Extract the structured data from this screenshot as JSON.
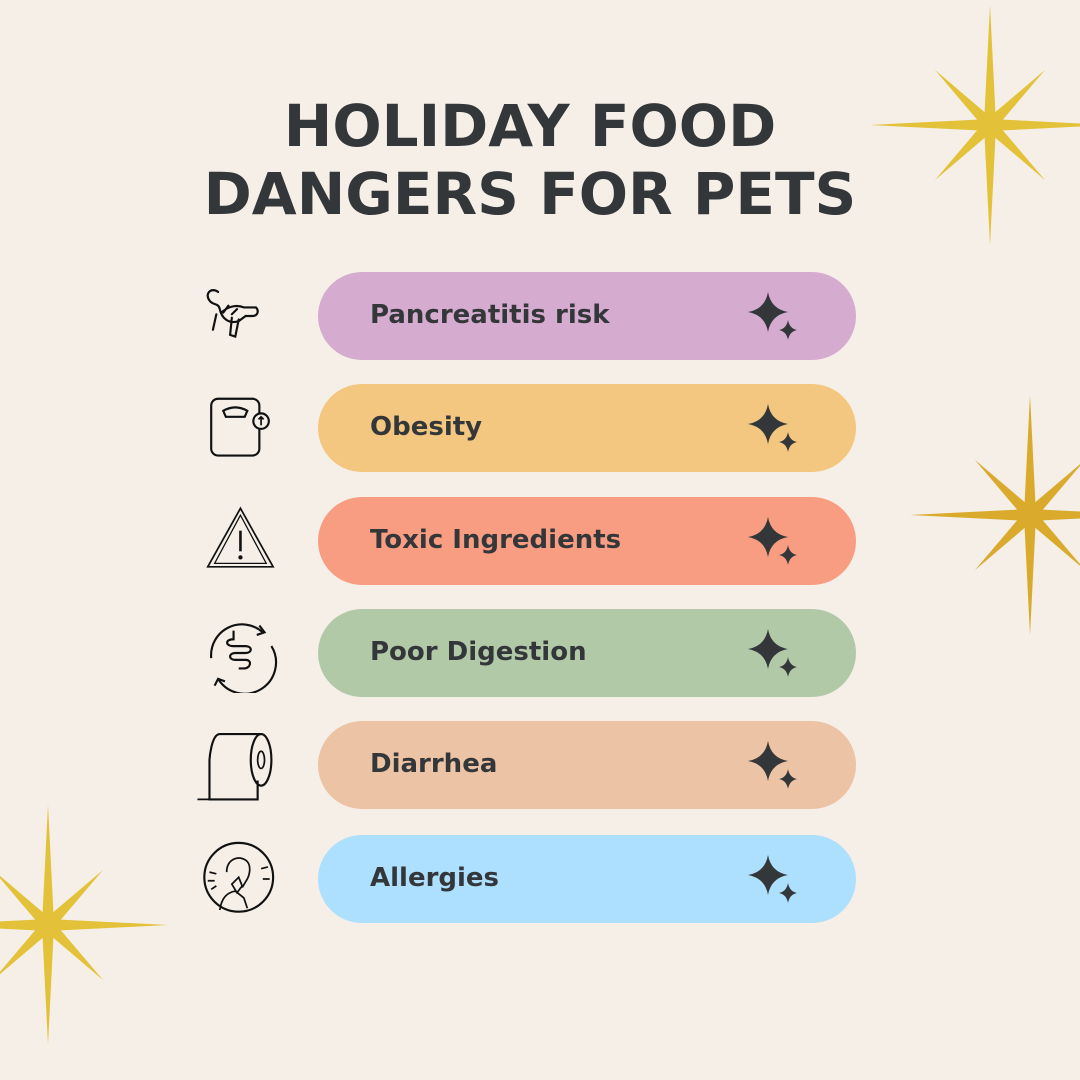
{
  "title": {
    "line1": "HOLIDAY FOOD",
    "line2": "DANGERS FOR PETS"
  },
  "colors": {
    "background": "#f5efe8",
    "text": "#34373a",
    "gold": "#e3c23a"
  },
  "items": [
    {
      "label": "Pancreatitis risk",
      "icon": "pancreas-icon",
      "color": "#d5abd0"
    },
    {
      "label": "Obesity",
      "icon": "weight-scale-icon",
      "color": "#f3c77f"
    },
    {
      "label": "Toxic Ingredients",
      "icon": "warning-triangle-icon",
      "color": "#f99d82"
    },
    {
      "label": "Poor Digestion",
      "icon": "intestine-cycle-icon",
      "color": "#b2c9a8"
    },
    {
      "label": "Diarrhea",
      "icon": "toilet-paper-icon",
      "color": "#edc3a5"
    },
    {
      "label": "Allergies",
      "icon": "sneezing-person-icon",
      "color": "#addfff"
    }
  ]
}
